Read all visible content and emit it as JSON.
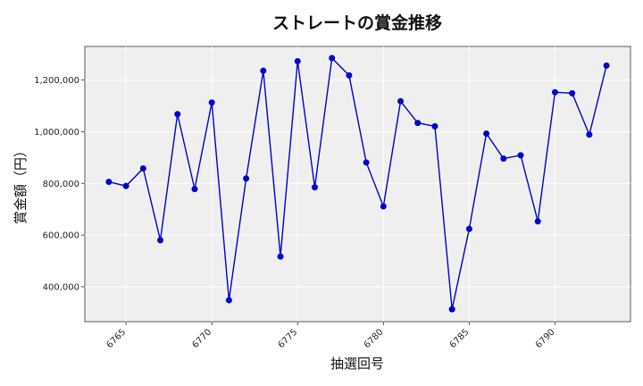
{
  "chart_data": {
    "type": "line",
    "title": "ストレートの賞金推移",
    "xlabel": "抽選回号",
    "ylabel": "賞金額（円）",
    "xlim": [
      6762.6,
      6794.4
    ],
    "ylim": [
      265000,
      1330000
    ],
    "x_ticks": [
      6765,
      6770,
      6775,
      6780,
      6785,
      6790
    ],
    "y_ticks": [
      400000,
      600000,
      800000,
      1000000,
      1200000
    ],
    "y_tick_labels": [
      "400,000",
      "600,000",
      "800,000",
      "1,000,000",
      "1,200,000"
    ],
    "grid": true,
    "colors": {
      "series": "#0000cc",
      "plot_background": "#efefef"
    },
    "series": [
      {
        "x": [
          6764,
          6765,
          6766,
          6767,
          6768,
          6769,
          6770,
          6771,
          6772,
          6773,
          6774,
          6775,
          6776,
          6777,
          6778,
          6779,
          6780,
          6781,
          6782,
          6783,
          6784,
          6785,
          6786,
          6787,
          6788,
          6789,
          6790,
          6791,
          6792,
          6793
        ],
        "values": [
          806000,
          790000,
          858000,
          580000,
          1068000,
          778000,
          1113000,
          348000,
          819000,
          1236000,
          517000,
          1273000,
          785000,
          1285000,
          1218000,
          881000,
          711000,
          1118000,
          1034000,
          1021000,
          313000,
          624000,
          993000,
          896000,
          909000,
          653000,
          1153000,
          1149000,
          989000,
          1256000
        ]
      }
    ]
  }
}
